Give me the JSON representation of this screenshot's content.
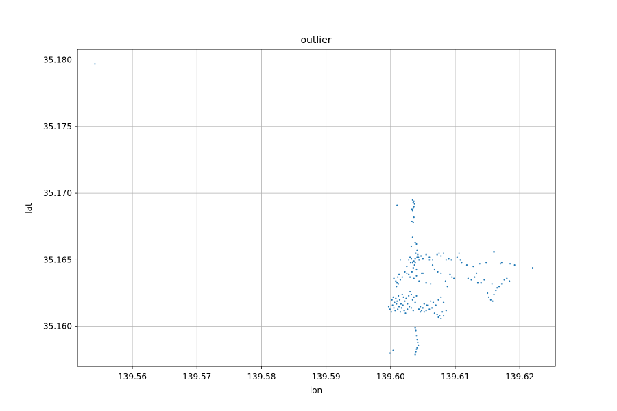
{
  "chart_data": {
    "type": "scatter",
    "title": "outlier",
    "xlabel": "lon",
    "ylabel": "lat",
    "xlim": [
      139.5515,
      139.6255
    ],
    "ylim": [
      35.157,
      35.1808
    ],
    "x_ticks": [
      "139.56",
      "139.57",
      "139.58",
      "139.59",
      "139.60",
      "139.61",
      "139.62"
    ],
    "y_ticks": [
      "35.160",
      "35.165",
      "35.170",
      "35.175",
      "35.180"
    ],
    "grid": true,
    "marker_color": "#1f77b4",
    "series": [
      {
        "x": [
          139.5542,
          139.6034,
          139.6035,
          139.6036,
          139.6033,
          139.6037,
          139.6034,
          139.6036,
          139.6035,
          139.601,
          139.6036,
          139.6033,
          139.6035,
          139.6034,
          139.6032,
          139.6038,
          139.604,
          139.6041,
          139.6039,
          139.6042,
          139.6043,
          139.6044,
          139.6038,
          139.6036,
          139.6034,
          139.6037,
          139.6035,
          139.604,
          139.6028,
          139.603,
          139.6032,
          139.6035,
          139.6038,
          139.6041,
          139.6044,
          139.6047,
          139.605,
          139.6055,
          139.606,
          139.6065,
          139.6072,
          139.6075,
          139.6078,
          139.6082,
          139.6086,
          139.609,
          139.6094,
          139.6103,
          139.6106,
          139.611,
          139.6118,
          139.6128,
          139.6138,
          139.6148,
          139.616,
          139.6172,
          139.6185,
          139.6192,
          139.622,
          139.6005,
          139.6008,
          139.601,
          139.6012,
          139.6011,
          139.6013,
          139.6009,
          139.6015,
          139.6018,
          139.6022,
          139.6025,
          139.6028,
          139.603,
          139.6033,
          139.6036,
          139.604,
          139.6044,
          139.6048,
          139.6055,
          139.6062,
          139.6068,
          139.6073,
          139.6078,
          139.6085,
          139.6092,
          139.6098,
          139.612,
          139.6125,
          139.613,
          139.6135,
          139.614,
          139.6145,
          139.615,
          139.6152,
          139.6155,
          139.6158,
          139.616,
          139.6163,
          139.6165,
          139.6168,
          139.6172,
          139.6176,
          139.618,
          139.6184,
          139.6002,
          139.6004,
          139.6006,
          139.6008,
          139.601,
          139.6012,
          139.6014,
          139.6016,
          139.6018,
          139.602,
          139.6022,
          139.6024,
          139.6026,
          139.6028,
          139.603,
          139.6032,
          139.6034,
          139.6036,
          139.6038,
          139.604,
          139.6043,
          139.6046,
          139.6049,
          139.6052,
          139.6055,
          139.6058,
          139.6062,
          139.6066,
          139.607,
          139.6074,
          139.6078,
          139.6082,
          139.5997,
          139.5999,
          139.6001,
          139.6003,
          139.6005,
          139.6007,
          139.6009,
          139.6011,
          139.6013,
          139.6015,
          139.6017,
          139.6019,
          139.6021,
          139.6023,
          139.6026,
          139.6029,
          139.6032,
          139.6035,
          139.6044,
          139.6046,
          139.6048,
          139.605,
          139.6052,
          139.6056,
          139.606,
          139.6064,
          139.6068,
          139.6072,
          139.6074,
          139.6076,
          139.6078,
          139.608,
          139.6082,
          139.6086,
          139.6038,
          139.6039,
          139.604,
          139.6041,
          139.6042,
          139.6043,
          139.6041,
          139.604,
          139.6039,
          139.6038,
          139.5999,
          139.6004,
          139.606,
          139.6065,
          139.6015,
          139.6025,
          139.6031,
          139.605,
          139.6088,
          139.6095,
          139.6108,
          139.6133,
          139.6157,
          139.617
        ],
        "y": [
          35.1797,
          35.1695,
          35.1693,
          35.169,
          35.1688,
          35.1692,
          35.1687,
          35.1694,
          35.1689,
          35.1691,
          35.1682,
          35.1679,
          35.1678,
          35.1667,
          35.166,
          35.1663,
          35.1662,
          35.1657,
          35.1655,
          35.1654,
          35.1652,
          35.165,
          35.1651,
          35.1649,
          35.1648,
          35.1646,
          35.1644,
          35.1643,
          35.165,
          35.1652,
          35.1651,
          35.1649,
          35.1648,
          35.1652,
          35.165,
          35.1653,
          35.1651,
          35.1654,
          35.1652,
          35.165,
          35.1654,
          35.1655,
          35.1653,
          35.1655,
          35.165,
          35.1651,
          35.165,
          35.1652,
          35.1655,
          35.1648,
          35.1646,
          35.1645,
          35.1647,
          35.1648,
          35.1656,
          35.1648,
          35.1647,
          35.1646,
          35.1644,
          35.1636,
          35.1634,
          35.1633,
          35.1632,
          35.1637,
          35.1639,
          35.163,
          35.1635,
          35.1637,
          35.1641,
          35.164,
          35.1639,
          35.1637,
          35.1641,
          35.1636,
          35.1638,
          35.1634,
          35.164,
          35.1633,
          35.1632,
          35.1643,
          35.1641,
          35.164,
          35.1634,
          35.1639,
          35.1636,
          35.1636,
          35.1635,
          35.1637,
          35.1633,
          35.1633,
          35.1635,
          35.1625,
          35.1622,
          35.162,
          35.1619,
          35.1624,
          35.1627,
          35.1629,
          35.163,
          35.1632,
          35.1635,
          35.1636,
          35.1634,
          35.162,
          35.1622,
          35.1618,
          35.1621,
          35.1619,
          35.1623,
          35.162,
          35.1617,
          35.1624,
          35.1622,
          35.1619,
          35.1621,
          35.1617,
          35.1623,
          35.1626,
          35.1624,
          35.162,
          35.1622,
          35.1618,
          35.1623,
          35.1613,
          35.1615,
          35.1614,
          35.1617,
          35.1612,
          35.1616,
          35.1619,
          35.1618,
          35.1616,
          35.162,
          35.1622,
          35.1618,
          35.1615,
          35.1613,
          35.1611,
          35.1616,
          35.1614,
          35.1612,
          35.1617,
          35.1613,
          35.1615,
          35.1611,
          35.1614,
          35.1616,
          35.1612,
          35.161,
          35.1613,
          35.1615,
          35.1614,
          35.1612,
          35.1613,
          35.1611,
          35.1612,
          35.1614,
          35.1611,
          35.1616,
          35.1613,
          35.1614,
          35.161,
          35.1609,
          35.1607,
          35.1608,
          35.1606,
          35.1611,
          35.1608,
          35.1612,
          35.1599,
          35.1597,
          35.1593,
          35.159,
          35.1588,
          35.1586,
          35.1584,
          35.1583,
          35.1581,
          35.1579,
          35.158,
          35.1582,
          35.165,
          35.1646,
          35.165,
          35.1645,
          35.1648,
          35.164,
          35.163,
          35.1637,
          35.165,
          35.164,
          35.1632,
          35.1647
        ]
      }
    ]
  }
}
